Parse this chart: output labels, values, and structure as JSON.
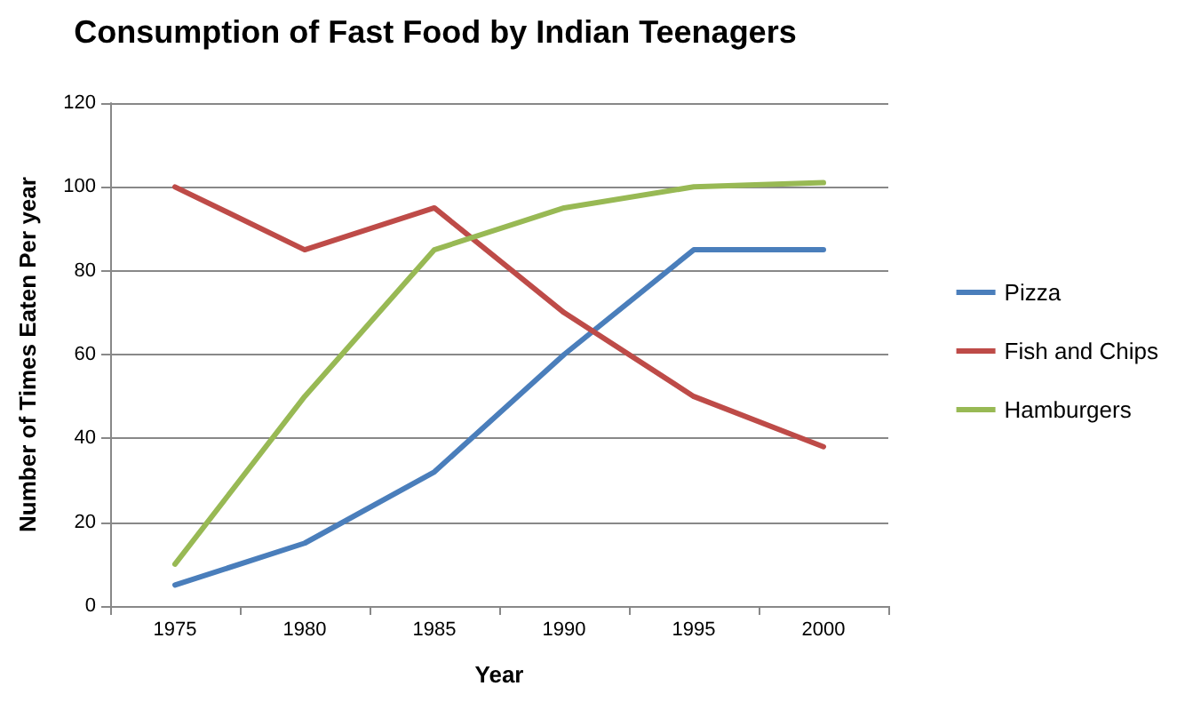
{
  "chart_data": {
    "type": "line",
    "title": "Consumption of Fast Food by Indian Teenagers",
    "xlabel": "Year",
    "ylabel": "Number of Times Eaten Per year",
    "categories": [
      "1975",
      "1980",
      "1985",
      "1990",
      "1995",
      "2000"
    ],
    "series": [
      {
        "name": "Pizza",
        "color": "#4a7ebb",
        "values": [
          5,
          15,
          32,
          60,
          85,
          85
        ]
      },
      {
        "name": "Fish and Chips",
        "color": "#be4b48",
        "values": [
          100,
          85,
          95,
          70,
          50,
          38
        ]
      },
      {
        "name": "Hamburgers",
        "color": "#98b954",
        "values": [
          10,
          50,
          85,
          95,
          100,
          101
        ]
      }
    ],
    "ylim": [
      0,
      120
    ],
    "yticks": [
      0,
      20,
      40,
      60,
      80,
      100,
      120
    ],
    "grid": "y",
    "legend": "right",
    "marker": "none",
    "line_style": "solid"
  }
}
